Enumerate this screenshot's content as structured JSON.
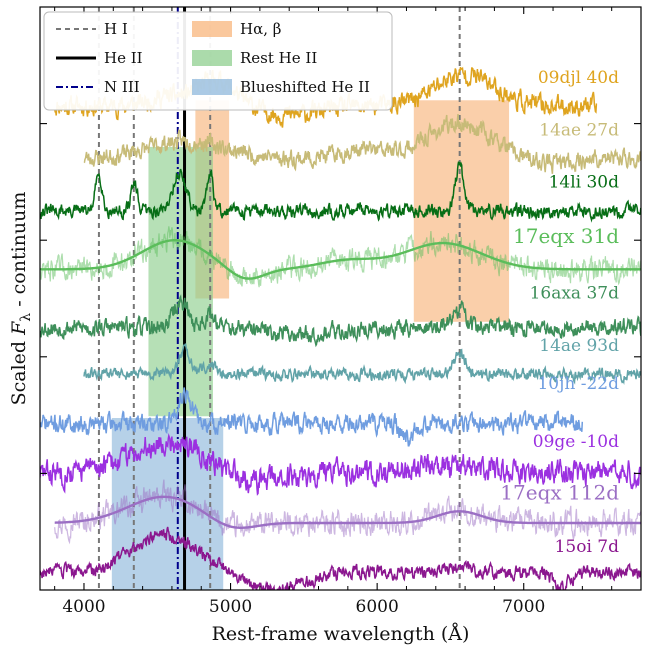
{
  "chart_data": {
    "type": "line",
    "title": "",
    "xlabel": "Rest-frame wavelength (Å)",
    "ylabel_prefix": "Scaled ",
    "ylabel_symbol": "F",
    "ylabel_subscript": "λ",
    "ylabel_suffix": " - continuum",
    "xlim": [
      3700,
      7800
    ],
    "ylim": [
      0,
      100
    ],
    "xticks": [
      4000,
      5000,
      6000,
      7000
    ],
    "xtick_labels": [
      "4000",
      "5000",
      "6000",
      "7000"
    ],
    "legend_placement": "top-left",
    "legend": [
      {
        "label": "H I",
        "kind": "line",
        "style": "dashed",
        "color": "#777777"
      },
      {
        "label": "He II",
        "kind": "line",
        "style": "solid",
        "color": "#000000"
      },
      {
        "label": "N III",
        "kind": "line",
        "style": "dashdot",
        "color": "#00008b"
      },
      {
        "label": "Hα, β",
        "kind": "patch",
        "color": "#f8b57c"
      },
      {
        "label": "Rest He II",
        "kind": "patch",
        "color": "#8fcf8f"
      },
      {
        "label": "Blueshifted He II",
        "kind": "patch",
        "color": "#8fb8dc"
      }
    ],
    "vertical_lines": [
      {
        "x": 4102,
        "type": "H I"
      },
      {
        "x": 4340,
        "type": "H I"
      },
      {
        "x": 4861,
        "type": "H I"
      },
      {
        "x": 6563,
        "type": "H I"
      },
      {
        "x": 4686,
        "type": "He II"
      },
      {
        "x": 4640,
        "type": "N III"
      }
    ],
    "shaded_regions": [
      {
        "type": "Hα, β",
        "xrange": [
          4760,
          4990
        ],
        "yrange": [
          50,
          84
        ]
      },
      {
        "type": "Hα, β",
        "xrange": [
          6250,
          6900
        ],
        "yrange": [
          46,
          84
        ]
      },
      {
        "type": "Rest He II",
        "xrange": [
          4440,
          4880
        ],
        "yrange": [
          29.8,
          76
        ]
      },
      {
        "type": "Blueshifted He II",
        "xrange": [
          4190,
          4950
        ],
        "yrange": [
          0,
          29.5
        ]
      }
    ],
    "series": [
      {
        "name": "09djl 40d",
        "color": "#dfa41f",
        "offset": 83.0,
        "xrange": [
          3800,
          7500
        ],
        "noise": 1.3,
        "seed": 11,
        "features": [
          [
            4900,
            130,
            4.5
          ],
          [
            6600,
            200,
            5.5
          ],
          [
            5400,
            200,
            -1.5
          ],
          [
            4560,
            120,
            1.5
          ]
        ]
      },
      {
        "name": "14ae 27d",
        "color": "#c7bb78",
        "offset": 74.0,
        "xrange": [
          4000,
          7800
        ],
        "noise": 1.2,
        "seed": 23,
        "features": [
          [
            4700,
            260,
            3.0
          ],
          [
            6563,
            220,
            6.0
          ],
          [
            5900,
            150,
            1.5
          ],
          [
            7150,
            160,
            -1.0
          ]
        ]
      },
      {
        "name": "14li 30d",
        "color": "#076e16",
        "offset": 65.0,
        "xrange": [
          3700,
          7800
        ],
        "noise": 0.9,
        "seed": 31,
        "features": [
          [
            4102,
            22,
            6.5
          ],
          [
            4340,
            22,
            4.5
          ],
          [
            4650,
            45,
            6.5
          ],
          [
            4861,
            22,
            6.0
          ],
          [
            6563,
            30,
            7.5
          ],
          [
            5870,
            25,
            1.2
          ]
        ]
      },
      {
        "name": "17eqx 31d",
        "color": "#5bbd5b",
        "offset": 55.0,
        "xrange": [
          3700,
          7800
        ],
        "noise": 1.6,
        "seed": 47,
        "faint": true,
        "features": [
          [
            4620,
            220,
            5.0
          ],
          [
            5100,
            120,
            -2.0
          ],
          [
            6450,
            260,
            4.5
          ],
          [
            5800,
            200,
            1.5
          ]
        ]
      },
      {
        "name": "16axa 37d",
        "color": "#3e8f5a",
        "offset": 45.0,
        "xrange": [
          3700,
          7800
        ],
        "noise": 1.2,
        "seed": 53,
        "features": [
          [
            4660,
            50,
            4.5
          ],
          [
            4861,
            40,
            2.5
          ],
          [
            6563,
            50,
            3.0
          ],
          [
            5500,
            300,
            -1.0
          ]
        ]
      },
      {
        "name": "14ae 93d",
        "color": "#61a3a8",
        "offset": 37.0,
        "xrange": [
          4000,
          7800
        ],
        "noise": 0.8,
        "seed": 61,
        "features": [
          [
            4686,
            40,
            4.0
          ],
          [
            4861,
            45,
            1.5
          ],
          [
            6563,
            35,
            4.0
          ]
        ]
      },
      {
        "name": "10jh -22d",
        "color": "#6f9de0",
        "offset": 28.5,
        "xrange": [
          3700,
          7400
        ],
        "noise": 1.3,
        "seed": 71,
        "features": [
          [
            4686,
            45,
            5.5
          ],
          [
            6200,
            40,
            -2.5
          ]
        ]
      },
      {
        "name": "09ge -10d",
        "color": "#9b30e0",
        "offset": 20.0,
        "xrange": [
          3700,
          7800
        ],
        "noise": 1.6,
        "seed": 83,
        "features": [
          [
            4600,
            280,
            5.5
          ],
          [
            5100,
            200,
            -2.0
          ],
          [
            6500,
            300,
            1.0
          ]
        ]
      },
      {
        "name": "17eqx 112d",
        "color": "#9b6fc4",
        "offset": 11.5,
        "xrange": [
          3800,
          7800
        ],
        "noise": 1.7,
        "seed": 97,
        "faint": true,
        "features": [
          [
            4550,
            250,
            4.5
          ],
          [
            5000,
            150,
            -1.5
          ],
          [
            6560,
            150,
            2.0
          ]
        ]
      },
      {
        "name": "15oi 7d",
        "color": "#8b178f",
        "offset": 3.0,
        "xrange": [
          3700,
          7800
        ],
        "noise": 0.9,
        "seed": 103,
        "features": [
          [
            4550,
            220,
            6.5
          ],
          [
            5300,
            200,
            -3.0
          ],
          [
            7250,
            60,
            -2.5
          ],
          [
            6563,
            80,
            1.0
          ]
        ]
      }
    ],
    "series_labels": [
      {
        "text": "09djl 40d",
        "x": 7650,
        "y": 87.0,
        "size": 17
      },
      {
        "text": "14ae 27d",
        "x": 7650,
        "y": 78.0,
        "size": 17
      },
      {
        "text": "14li 30d",
        "x": 7650,
        "y": 69.0,
        "size": 17
      },
      {
        "text": "17eqx 31d",
        "x": 7650,
        "y": 59.5,
        "size": 20
      },
      {
        "text": "16axa 37d",
        "x": 7650,
        "y": 50.0,
        "size": 17
      },
      {
        "text": "14ae 93d",
        "x": 7650,
        "y": 41.0,
        "size": 17
      },
      {
        "text": "10jh -22d",
        "x": 7650,
        "y": 34.5,
        "size": 17
      },
      {
        "text": "09ge -10d",
        "x": 7650,
        "y": 24.5,
        "size": 17
      },
      {
        "text": "17eqx 112d",
        "x": 7650,
        "y": 15.5,
        "size": 20
      },
      {
        "text": "15oi 7d",
        "x": 7650,
        "y": 6.5,
        "size": 17
      }
    ]
  }
}
